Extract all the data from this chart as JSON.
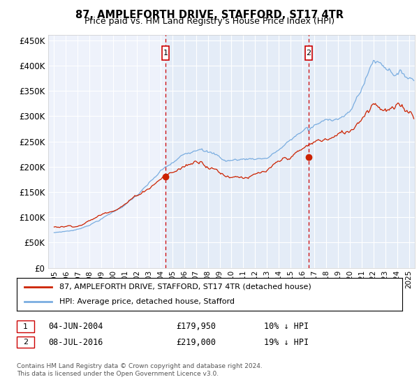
{
  "title": "87, AMPLEFORTH DRIVE, STAFFORD, ST17 4TR",
  "subtitle": "Price paid vs. HM Land Registry's House Price Index (HPI)",
  "xlim_start": 1994.5,
  "xlim_end": 2025.5,
  "ylim_min": 0,
  "ylim_max": 460000,
  "yticks": [
    0,
    50000,
    100000,
    150000,
    200000,
    250000,
    300000,
    350000,
    400000,
    450000
  ],
  "ytick_labels": [
    "£0",
    "£50K",
    "£100K",
    "£150K",
    "£200K",
    "£250K",
    "£300K",
    "£350K",
    "£400K",
    "£450K"
  ],
  "xticks": [
    1995,
    1996,
    1997,
    1998,
    1999,
    2000,
    2001,
    2002,
    2003,
    2004,
    2005,
    2006,
    2007,
    2008,
    2009,
    2010,
    2011,
    2012,
    2013,
    2014,
    2015,
    2016,
    2017,
    2018,
    2019,
    2020,
    2021,
    2022,
    2023,
    2024,
    2025
  ],
  "hpi_color": "#7aade0",
  "price_color": "#cc2200",
  "vline_color": "#cc0000",
  "sale1_x": 2004.42,
  "sale1_y": 179950,
  "sale1_label": "1",
  "sale1_date": "04-JUN-2004",
  "sale1_price": "£179,950",
  "sale1_hpi": "10% ↓ HPI",
  "sale2_x": 2016.52,
  "sale2_y": 219000,
  "sale2_label": "2",
  "sale2_date": "08-JUL-2016",
  "sale2_price": "£219,000",
  "sale2_hpi": "19% ↓ HPI",
  "legend_line1": "87, AMPLEFORTH DRIVE, STAFFORD, ST17 4TR (detached house)",
  "legend_line2": "HPI: Average price, detached house, Stafford",
  "footer1": "Contains HM Land Registry data © Crown copyright and database right 2024.",
  "footer2": "This data is licensed under the Open Government Licence v3.0.",
  "background_color": "#ffffff",
  "plot_bg_color": "#eef2fb",
  "highlight_bg": "#dce8f5"
}
